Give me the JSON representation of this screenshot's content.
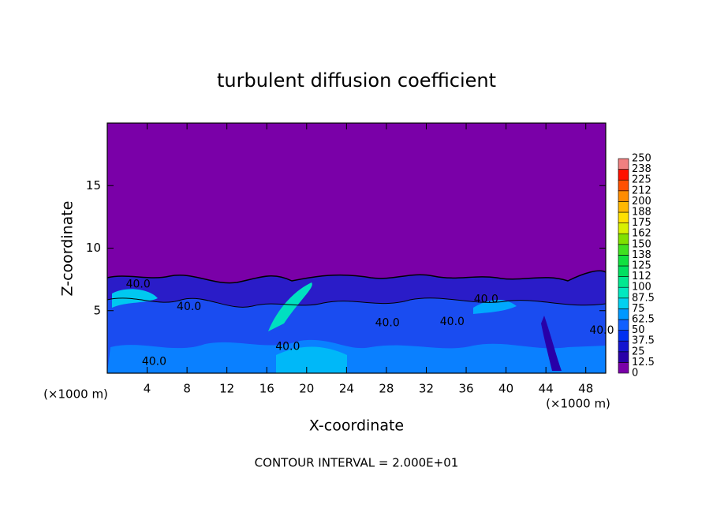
{
  "chart_data": {
    "type": "contour",
    "title": "turbulent diffusion coefficient",
    "x_label": "X-coordinate",
    "y_label": "Z-coordinate",
    "x_unit": "(×1000 m)",
    "y_unit": "(×1000 m)",
    "footnote": "CONTOUR INTERVAL = 2.000E+01",
    "xlim": [
      0,
      50
    ],
    "ylim": [
      0,
      20
    ],
    "xticks": [
      4,
      8,
      12,
      16,
      20,
      24,
      28,
      32,
      36,
      40,
      44,
      48
    ],
    "yticks": [
      5,
      10,
      15
    ],
    "colorbar": {
      "levels": [
        0,
        12.5,
        25,
        37.5,
        50,
        62.5,
        75,
        87.5,
        100,
        {
          "value": 112.5,
          "label": "112"
        },
        125,
        {
          "value": 137.5,
          "label": "138"
        },
        150,
        {
          "value": 162.5,
          "label": "162"
        },
        175,
        {
          "value": 187.5,
          "label": "188"
        },
        200,
        {
          "value": 212.5,
          "label": "212"
        },
        225,
        {
          "value": 237.5,
          "label": "238"
        },
        250
      ],
      "colors": [
        "#7a00a8",
        "#2800a8",
        "#1414d0",
        "#0030f0",
        "#1060ff",
        "#0098ff",
        "#00d0f0",
        "#00e8c0",
        "#00e890",
        "#00e060",
        "#10e040",
        "#40e020",
        "#80e000",
        "#d8f000",
        "#ffe000",
        "#ffb800",
        "#ff8c00",
        "#ff5000",
        "#ff1000",
        "#f08080"
      ]
    },
    "contour_labels": [
      {
        "text": "40.0",
        "x": 3.1,
        "z": 7.1
      },
      {
        "text": "40.0",
        "x": 8.2,
        "z": 5.3
      },
      {
        "text": "40.0",
        "x": 18.1,
        "z": 2.1
      },
      {
        "text": "40.0",
        "x": 4.7,
        "z": 0.9
      },
      {
        "text": "40.0",
        "x": 28.1,
        "z": 4.0
      },
      {
        "text": "40.0",
        "x": 34.6,
        "z": 4.1
      },
      {
        "text": "40.0",
        "x": 38.0,
        "z": 5.9
      },
      {
        "text": "40.0",
        "x": 49.6,
        "z": 3.4
      }
    ]
  }
}
